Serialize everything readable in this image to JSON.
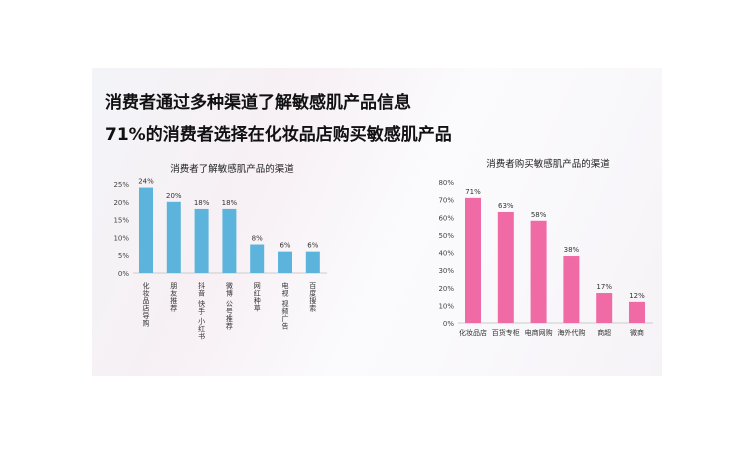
{
  "headline": {
    "line1": "消费者通过多种渠道了解敏感肌产品信息",
    "line2": "71%的消费者选择在化妆品店购买敏感肌产品"
  },
  "chart_data": [
    {
      "type": "bar",
      "title": "消费者了解敏感肌产品的渠道",
      "categories": [
        "化妆品店导购",
        "朋友推荐",
        "抖音 快手 小红书",
        "微博 公号推荐",
        "网红种草",
        "电视 视频广告",
        "百度搜索"
      ],
      "values": [
        24,
        20,
        18,
        18,
        8,
        6,
        6
      ],
      "data_labels": [
        "24%",
        "20%",
        "18%",
        "18%",
        "8%",
        "6%",
        "6%"
      ],
      "ylim": [
        0,
        25
      ],
      "yticks": [
        "0%",
        "5%",
        "10%",
        "15%",
        "20%",
        "25%"
      ],
      "color": "#5cb3dc",
      "grid": false
    },
    {
      "type": "bar",
      "title": "消费者购买敏感肌产品的渠道",
      "categories": [
        "化妆品店",
        "百货专柜",
        "电商网购",
        "海外代购",
        "商超",
        "微商"
      ],
      "values": [
        71,
        63,
        58,
        38,
        17,
        12
      ],
      "data_labels": [
        "71%",
        "63%",
        "58%",
        "38%",
        "17%",
        "12%"
      ],
      "ylim": [
        0,
        80
      ],
      "yticks": [
        "0%",
        "10%",
        "20%",
        "30%",
        "40%",
        "50%",
        "60%",
        "70%",
        "80%"
      ],
      "color": "#f06aa6",
      "grid": false
    }
  ]
}
